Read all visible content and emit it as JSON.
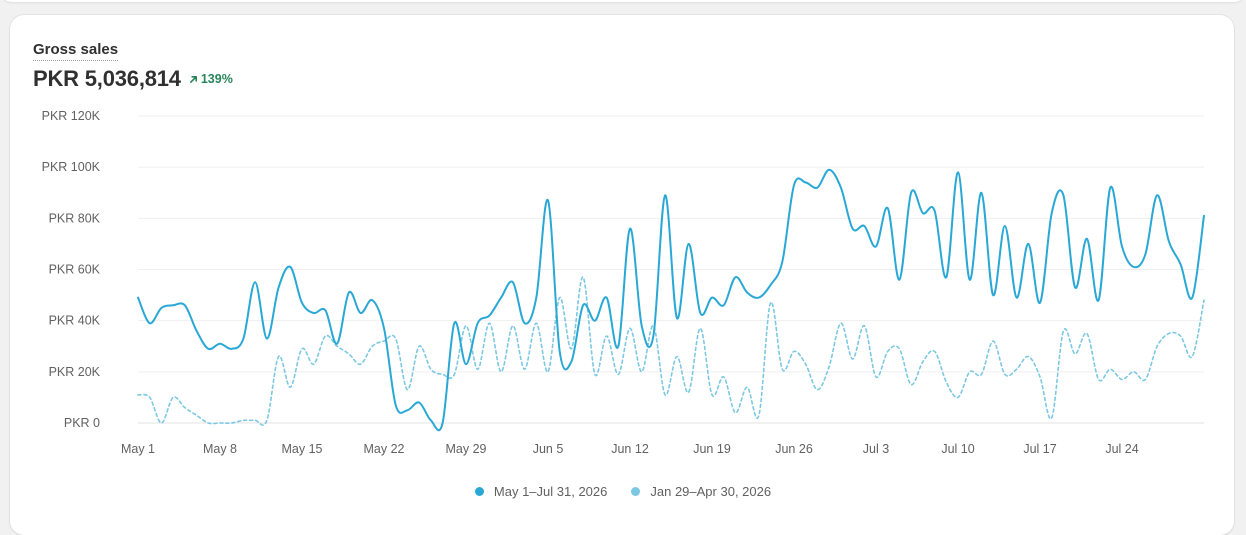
{
  "metric": {
    "title": "Gross sales",
    "value": "PKR 5,036,814",
    "change": "139%",
    "change_icon": "arrow-up-right-icon",
    "change_color": "#29845a"
  },
  "legend": [
    {
      "label": "May 1–Jul 31, 2026",
      "color": "#29a8d6"
    },
    {
      "label": "Jan 29–Apr 30, 2026",
      "color": "#7cc8e2"
    }
  ],
  "chart_data": {
    "type": "line",
    "ylim": [
      0,
      120000
    ],
    "y_ticks": [
      0,
      20000,
      40000,
      60000,
      80000,
      100000,
      120000
    ],
    "y_tick_labels": [
      "PKR 0",
      "PKR 20K",
      "PKR 40K",
      "PKR 60K",
      "PKR 80K",
      "PKR 100K",
      "PKR 120K"
    ],
    "x_tick_labels": [
      "May 1",
      "May 8",
      "May 15",
      "May 22",
      "May 29",
      "Jun 5",
      "Jun 12",
      "Jun 19",
      "Jun 26",
      "Jul 3",
      "Jul 10",
      "Jul 17",
      "Jul 24"
    ],
    "x_tick_index": [
      0,
      7,
      14,
      21,
      28,
      35,
      42,
      49,
      56,
      63,
      70,
      77,
      84
    ],
    "grid": true,
    "legend_position": "bottom",
    "series": [
      {
        "name": "May 1–Jul 31, 2026",
        "color": "#29a8d6",
        "dash": false,
        "values": [
          49000,
          39000,
          45000,
          46000,
          46000,
          36000,
          29000,
          31000,
          29000,
          33000,
          55000,
          33000,
          53000,
          61000,
          47000,
          43000,
          44000,
          31000,
          51000,
          43000,
          48000,
          37000,
          7000,
          5000,
          8000,
          1000,
          0,
          39000,
          23000,
          39000,
          42000,
          49000,
          55000,
          39000,
          49000,
          87000,
          28000,
          24000,
          46000,
          40000,
          49000,
          30000,
          76000,
          38000,
          34000,
          89000,
          41000,
          70000,
          43000,
          49000,
          46000,
          57000,
          51000,
          49000,
          54000,
          63000,
          93000,
          94000,
          92000,
          99000,
          92000,
          76000,
          77000,
          69000,
          84000,
          56000,
          90000,
          82000,
          83000,
          57000,
          98000,
          56000,
          90000,
          50000,
          77000,
          49000,
          70000,
          47000,
          82000,
          89000,
          53000,
          72000,
          48000,
          92000,
          69000,
          61000,
          66000,
          89000,
          71000,
          62000,
          49000,
          81000
        ]
      },
      {
        "name": "Jan 29–Apr 30, 2026",
        "color": "#7cc8e2",
        "dash": true,
        "values": [
          11000,
          10000,
          0,
          10000,
          6000,
          3000,
          0,
          0,
          0,
          1000,
          1000,
          1000,
          26000,
          14000,
          29000,
          23000,
          34000,
          30000,
          27000,
          23000,
          30000,
          32000,
          33000,
          13000,
          30000,
          21000,
          19000,
          19000,
          38000,
          21000,
          39000,
          20000,
          38000,
          21000,
          39000,
          20000,
          49000,
          29000,
          57000,
          19000,
          34000,
          19000,
          37000,
          20000,
          38000,
          11000,
          26000,
          12000,
          37000,
          11000,
          18000,
          4000,
          14000,
          3000,
          47000,
          21000,
          28000,
          23000,
          13000,
          22000,
          39000,
          25000,
          38000,
          18000,
          28000,
          29000,
          15000,
          24000,
          28000,
          16000,
          10000,
          20000,
          19000,
          32000,
          19000,
          21000,
          26000,
          18000,
          2000,
          36000,
          27000,
          35000,
          17000,
          21000,
          17000,
          20000,
          17000,
          30000,
          35000,
          34000,
          26000,
          48000
        ]
      }
    ]
  }
}
